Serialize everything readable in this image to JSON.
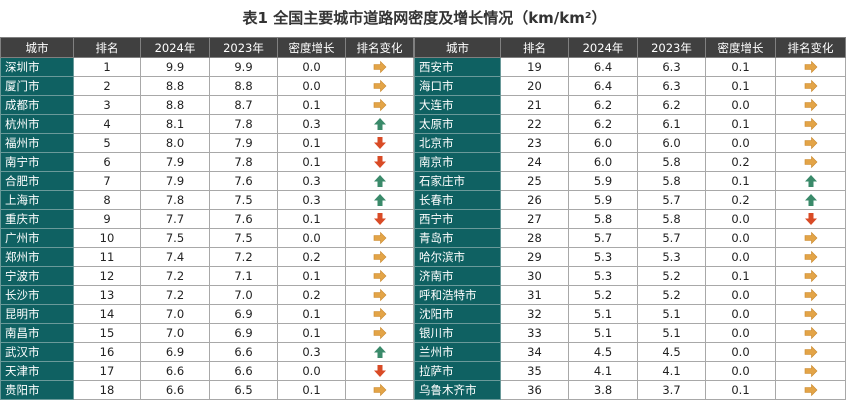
{
  "title": "表1 全国主要城市道路网密度及增长情况（km/km²）",
  "headers": [
    "城市",
    "排名",
    "2024年",
    "2023年",
    "密度增长",
    "排名变化"
  ],
  "colors": {
    "header_bg": "#404040",
    "city_bg": "#0f6162",
    "arrow_flat": "#e3a447",
    "arrow_up": "#3a8a6a",
    "arrow_down": "#d94b26"
  },
  "left_rows": [
    {
      "city": "深圳市",
      "rank": "1",
      "y2024": "9.9",
      "y2023": "9.9",
      "growth": "0.0",
      "change": "flat"
    },
    {
      "city": "厦门市",
      "rank": "2",
      "y2024": "8.8",
      "y2023": "8.8",
      "growth": "0.0",
      "change": "flat"
    },
    {
      "city": "成都市",
      "rank": "3",
      "y2024": "8.8",
      "y2023": "8.7",
      "growth": "0.1",
      "change": "flat"
    },
    {
      "city": "杭州市",
      "rank": "4",
      "y2024": "8.1",
      "y2023": "7.8",
      "growth": "0.3",
      "change": "up"
    },
    {
      "city": "福州市",
      "rank": "5",
      "y2024": "8.0",
      "y2023": "7.9",
      "growth": "0.1",
      "change": "down"
    },
    {
      "city": "南宁市",
      "rank": "6",
      "y2024": "7.9",
      "y2023": "7.8",
      "growth": "0.1",
      "change": "down"
    },
    {
      "city": "合肥市",
      "rank": "7",
      "y2024": "7.9",
      "y2023": "7.6",
      "growth": "0.3",
      "change": "up"
    },
    {
      "city": "上海市",
      "rank": "8",
      "y2024": "7.8",
      "y2023": "7.5",
      "growth": "0.3",
      "change": "up"
    },
    {
      "city": "重庆市",
      "rank": "9",
      "y2024": "7.7",
      "y2023": "7.6",
      "growth": "0.1",
      "change": "down"
    },
    {
      "city": "广州市",
      "rank": "10",
      "y2024": "7.5",
      "y2023": "7.5",
      "growth": "0.0",
      "change": "flat"
    },
    {
      "city": "郑州市",
      "rank": "11",
      "y2024": "7.4",
      "y2023": "7.2",
      "growth": "0.2",
      "change": "flat"
    },
    {
      "city": "宁波市",
      "rank": "12",
      "y2024": "7.2",
      "y2023": "7.1",
      "growth": "0.1",
      "change": "flat"
    },
    {
      "city": "长沙市",
      "rank": "13",
      "y2024": "7.2",
      "y2023": "7.0",
      "growth": "0.2",
      "change": "flat"
    },
    {
      "city": "昆明市",
      "rank": "14",
      "y2024": "7.0",
      "y2023": "6.9",
      "growth": "0.1",
      "change": "flat"
    },
    {
      "city": "南昌市",
      "rank": "15",
      "y2024": "7.0",
      "y2023": "6.9",
      "growth": "0.1",
      "change": "flat"
    },
    {
      "city": "武汉市",
      "rank": "16",
      "y2024": "6.9",
      "y2023": "6.6",
      "growth": "0.3",
      "change": "up"
    },
    {
      "city": "天津市",
      "rank": "17",
      "y2024": "6.6",
      "y2023": "6.6",
      "growth": "0.0",
      "change": "down"
    },
    {
      "city": "贵阳市",
      "rank": "18",
      "y2024": "6.6",
      "y2023": "6.5",
      "growth": "0.1",
      "change": "flat"
    }
  ],
  "right_rows": [
    {
      "city": "西安市",
      "rank": "19",
      "y2024": "6.4",
      "y2023": "6.3",
      "growth": "0.1",
      "change": "flat"
    },
    {
      "city": "海口市",
      "rank": "20",
      "y2024": "6.4",
      "y2023": "6.3",
      "growth": "0.1",
      "change": "flat"
    },
    {
      "city": "大连市",
      "rank": "21",
      "y2024": "6.2",
      "y2023": "6.2",
      "growth": "0.0",
      "change": "flat"
    },
    {
      "city": "太原市",
      "rank": "22",
      "y2024": "6.2",
      "y2023": "6.1",
      "growth": "0.1",
      "change": "flat"
    },
    {
      "city": "北京市",
      "rank": "23",
      "y2024": "6.0",
      "y2023": "6.0",
      "growth": "0.0",
      "change": "flat"
    },
    {
      "city": "南京市",
      "rank": "24",
      "y2024": "6.0",
      "y2023": "5.8",
      "growth": "0.2",
      "change": "flat"
    },
    {
      "city": "石家庄市",
      "rank": "25",
      "y2024": "5.9",
      "y2023": "5.8",
      "growth": "0.1",
      "change": "up"
    },
    {
      "city": "长春市",
      "rank": "26",
      "y2024": "5.9",
      "y2023": "5.7",
      "growth": "0.2",
      "change": "up"
    },
    {
      "city": "西宁市",
      "rank": "27",
      "y2024": "5.8",
      "y2023": "5.8",
      "growth": "0.0",
      "change": "down"
    },
    {
      "city": "青岛市",
      "rank": "28",
      "y2024": "5.7",
      "y2023": "5.7",
      "growth": "0.0",
      "change": "flat"
    },
    {
      "city": "哈尔滨市",
      "rank": "29",
      "y2024": "5.3",
      "y2023": "5.3",
      "growth": "0.0",
      "change": "flat"
    },
    {
      "city": "济南市",
      "rank": "30",
      "y2024": "5.3",
      "y2023": "5.2",
      "growth": "0.1",
      "change": "flat"
    },
    {
      "city": "呼和浩特市",
      "rank": "31",
      "y2024": "5.2",
      "y2023": "5.2",
      "growth": "0.0",
      "change": "flat"
    },
    {
      "city": "沈阳市",
      "rank": "32",
      "y2024": "5.1",
      "y2023": "5.1",
      "growth": "0.0",
      "change": "flat"
    },
    {
      "city": "银川市",
      "rank": "33",
      "y2024": "5.1",
      "y2023": "5.1",
      "growth": "0.0",
      "change": "flat"
    },
    {
      "city": "兰州市",
      "rank": "34",
      "y2024": "4.5",
      "y2023": "4.5",
      "growth": "0.0",
      "change": "flat"
    },
    {
      "city": "拉萨市",
      "rank": "35",
      "y2024": "4.1",
      "y2023": "4.1",
      "growth": "0.0",
      "change": "flat"
    },
    {
      "city": "乌鲁木齐市",
      "rank": "36",
      "y2024": "3.8",
      "y2023": "3.7",
      "growth": "0.1",
      "change": "flat"
    }
  ]
}
